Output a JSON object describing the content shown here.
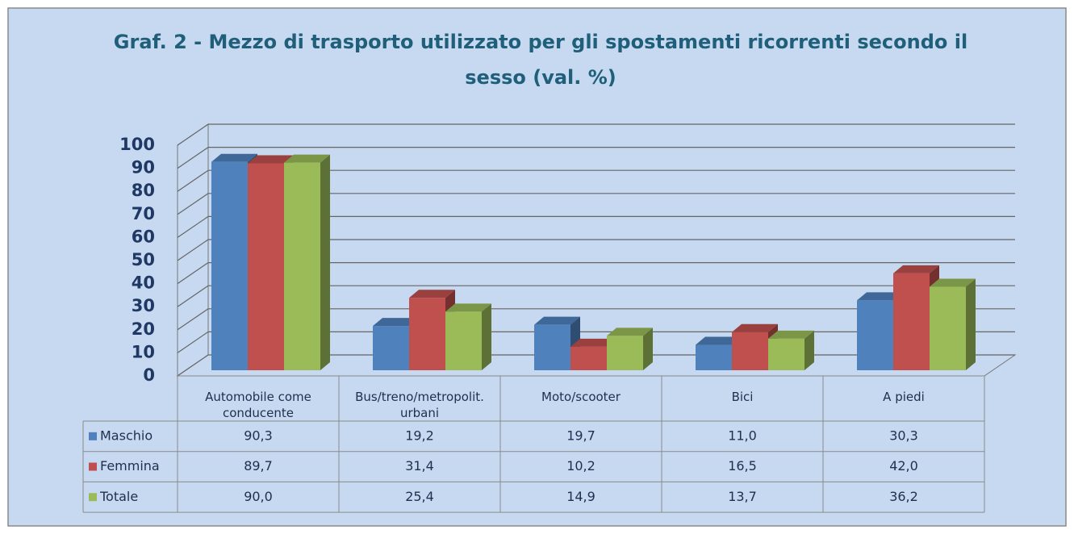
{
  "chart_data": {
    "type": "bar3d",
    "title": "Graf. 2 - Mezzo di trasporto utilizzato per gli spostamenti ricorrenti secondo il sesso (val. %)",
    "categories": [
      "Automobile come conducente",
      "Bus/treno/metropolit. urbani",
      "Moto/scooter",
      "Bici",
      "A piedi"
    ],
    "series": [
      {
        "name": "Maschio",
        "color": "#4f81bd",
        "values": [
          90.3,
          19.2,
          19.7,
          11.0,
          30.3
        ],
        "value_labels": [
          "90,3",
          "19,2",
          "19,7",
          "11,0",
          "30,3"
        ]
      },
      {
        "name": "Femmina",
        "color": "#c0504d",
        "values": [
          89.7,
          31.4,
          10.2,
          16.5,
          42.0
        ],
        "value_labels": [
          "89,7",
          "31,4",
          "10,2",
          "16,5",
          "42,0"
        ]
      },
      {
        "name": "Totale",
        "color": "#9bbb59",
        "values": [
          90.0,
          25.4,
          14.9,
          13.7,
          36.2
        ],
        "value_labels": [
          "90,0",
          "25,4",
          "14,9",
          "13,7",
          "36,2"
        ]
      }
    ],
    "ylim": [
      0,
      100
    ],
    "yticks": [
      0,
      10,
      20,
      30,
      40,
      50,
      60,
      70,
      80,
      90,
      100
    ],
    "grid": true,
    "data_table": true
  }
}
